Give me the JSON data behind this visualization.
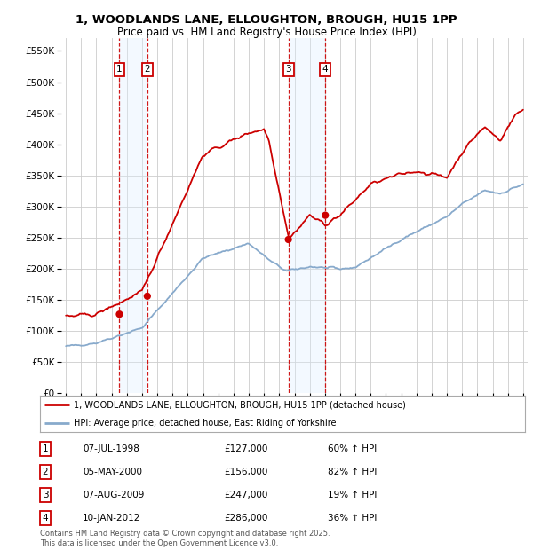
{
  "title1": "1, WOODLANDS LANE, ELLOUGHTON, BROUGH, HU15 1PP",
  "title2": "Price paid vs. HM Land Registry's House Price Index (HPI)",
  "ylabel_ticks": [
    "£0",
    "£50K",
    "£100K",
    "£150K",
    "£200K",
    "£250K",
    "£300K",
    "£350K",
    "£400K",
    "£450K",
    "£500K",
    "£550K"
  ],
  "ytick_vals": [
    0,
    50000,
    100000,
    150000,
    200000,
    250000,
    300000,
    350000,
    400000,
    450000,
    500000,
    550000
  ],
  "sale_dates": [
    "1998-07-07",
    "2000-05-05",
    "2009-08-07",
    "2012-01-10"
  ],
  "sale_prices": [
    127000,
    156000,
    247000,
    286000
  ],
  "sale_labels": [
    "1",
    "2",
    "3",
    "4"
  ],
  "sale_pcts": [
    "60% ↑ HPI",
    "82% ↑ HPI",
    "19% ↑ HPI",
    "36% ↑ HPI"
  ],
  "sale_date_strs": [
    "07-JUL-1998",
    "05-MAY-2000",
    "07-AUG-2009",
    "10-JAN-2012"
  ],
  "sale_price_strs": [
    "£127,000",
    "£156,000",
    "£247,000",
    "£286,000"
  ],
  "legend_line1": "1, WOODLANDS LANE, ELLOUGHTON, BROUGH, HU15 1PP (detached house)",
  "legend_line2": "HPI: Average price, detached house, East Riding of Yorkshire",
  "footnote1": "Contains HM Land Registry data © Crown copyright and database right 2025.",
  "footnote2": "This data is licensed under the Open Government Licence v3.0.",
  "red_color": "#cc0000",
  "blue_color": "#88aacc",
  "background_color": "#ffffff",
  "grid_color": "#cccccc",
  "shade_color": "#ddeeff"
}
